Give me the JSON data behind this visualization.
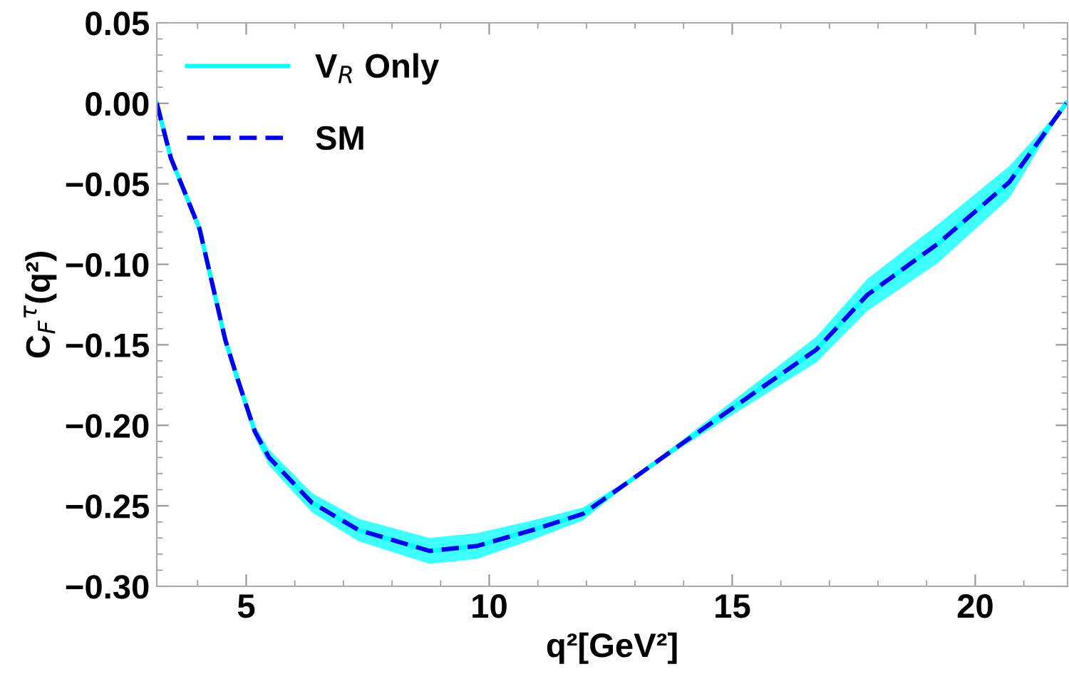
{
  "chart_data": {
    "type": "line",
    "xlabel": "q²[GeV²]",
    "ylabel": "C$_{F}$$^{τ}$(q²)",
    "x": [
      3.16,
      3.45,
      4.04,
      4.57,
      4.82,
      5.18,
      5.47,
      6.35,
      7.31,
      8.77,
      9.74,
      10.9,
      11.93,
      12.92,
      13.89,
      15.35,
      16.73,
      17.78,
      19.24,
      20.7,
      21.87
    ],
    "series": [
      {
        "name": "V$_{R}$ Only",
        "color": "#00ffff",
        "line_style": "solid",
        "values": [
          0,
          -0.034,
          -0.078,
          -0.147,
          -0.171,
          -0.204,
          -0.22,
          -0.248,
          -0.265,
          -0.278,
          -0.275,
          -0.265,
          -0.255,
          -0.234,
          -0.213,
          -0.182,
          -0.153,
          -0.119,
          -0.087,
          -0.049,
          0
        ],
        "lower": [
          0,
          -0.035,
          -0.08,
          -0.15,
          -0.175,
          -0.208,
          -0.225,
          -0.254,
          -0.272,
          -0.286,
          -0.283,
          -0.271,
          -0.259,
          -0.235,
          -0.215,
          -0.187,
          -0.161,
          -0.129,
          -0.099,
          -0.059,
          0
        ],
        "upper": [
          0,
          -0.033,
          -0.076,
          -0.144,
          -0.167,
          -0.2,
          -0.215,
          -0.242,
          -0.258,
          -0.27,
          -0.267,
          -0.259,
          -0.251,
          -0.233,
          -0.211,
          -0.177,
          -0.145,
          -0.109,
          -0.075,
          -0.039,
          0
        ]
      },
      {
        "name": "SM",
        "color": "#0000ee",
        "line_style": "dashed",
        "values": [
          0,
          -0.034,
          -0.078,
          -0.147,
          -0.171,
          -0.204,
          -0.22,
          -0.248,
          -0.265,
          -0.278,
          -0.275,
          -0.265,
          -0.255,
          -0.234,
          -0.213,
          -0.182,
          -0.153,
          -0.119,
          -0.087,
          -0.049,
          0
        ]
      }
    ],
    "xlim": [
      3.16,
      21.9
    ],
    "ylim": [
      -0.3,
      0.05
    ],
    "xticks": [
      5,
      10,
      15,
      20
    ],
    "yticks": [
      {
        "value": -0.3,
        "label": "−0.30"
      },
      {
        "value": -0.25,
        "label": "−0.25"
      },
      {
        "value": -0.2,
        "label": "−0.20"
      },
      {
        "value": -0.15,
        "label": "−0.15"
      },
      {
        "value": -0.1,
        "label": "−0.10"
      },
      {
        "value": -0.05,
        "label": "−0.05"
      },
      {
        "value": 0,
        "label": "0.00"
      },
      {
        "value": 0.05,
        "label": "0.05"
      }
    ],
    "grid": false,
    "legend": "top left",
    "marker": "none"
  }
}
